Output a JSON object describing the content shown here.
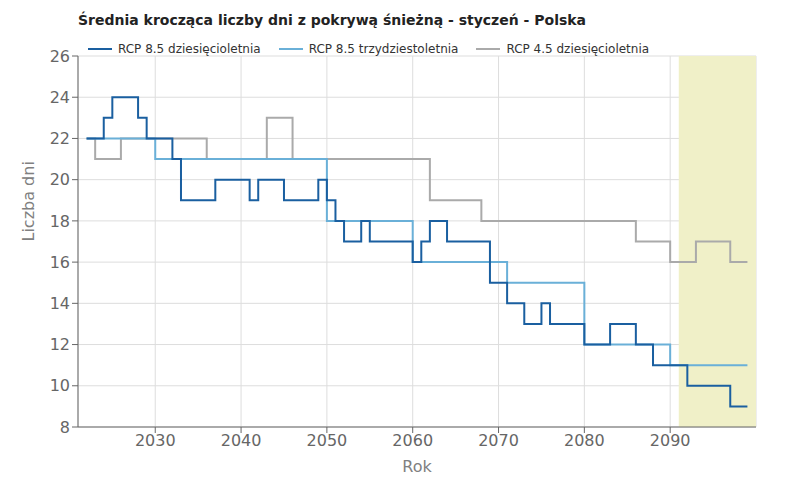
{
  "chart_data": {
    "type": "line",
    "title": "Średnia krocząca liczby dni z pokrywą śnieżną - styczeń - Polska",
    "x_label": "Rok",
    "y_label": "Liczba dni",
    "x": [
      2022,
      2023,
      2024,
      2025,
      2026,
      2027,
      2028,
      2029,
      2030,
      2031,
      2032,
      2033,
      2034,
      2035,
      2036,
      2037,
      2038,
      2039,
      2040,
      2041,
      2042,
      2043,
      2044,
      2045,
      2046,
      2047,
      2048,
      2049,
      2050,
      2051,
      2052,
      2053,
      2054,
      2055,
      2056,
      2057,
      2058,
      2059,
      2060,
      2061,
      2062,
      2063,
      2064,
      2065,
      2066,
      2067,
      2068,
      2069,
      2070,
      2071,
      2072,
      2073,
      2074,
      2075,
      2076,
      2077,
      2078,
      2079,
      2080,
      2081,
      2082,
      2083,
      2084,
      2085,
      2086,
      2087,
      2088,
      2089,
      2090,
      2091,
      2092,
      2093,
      2094,
      2095,
      2096,
      2097,
      2098,
      2099
    ],
    "series": [
      {
        "name": "RCP 8.5 dziesięcioletnia",
        "color": "#1a5fa0",
        "line_style": "step",
        "values": [
          22,
          22,
          23,
          24,
          24,
          24,
          23,
          22,
          22,
          22,
          21,
          19,
          19,
          19,
          19,
          20,
          20,
          20,
          20,
          19,
          20,
          20,
          20,
          19,
          19,
          19,
          19,
          20,
          19,
          18,
          17,
          17,
          18,
          17,
          17,
          17,
          17,
          17,
          16,
          17,
          18,
          18,
          17,
          17,
          17,
          17,
          17,
          15,
          15,
          14,
          14,
          13,
          13,
          14,
          13,
          13,
          13,
          13,
          12,
          12,
          12,
          13,
          13,
          13,
          12,
          12,
          11,
          11,
          11,
          11,
          10,
          10,
          10,
          10,
          10,
          9,
          9,
          9
        ]
      },
      {
        "name": "RCP 8.5 trzydziestoletnia",
        "color": "#6ab0d8",
        "line_style": "step",
        "values": [
          22,
          22,
          22,
          22,
          22,
          22,
          22,
          22,
          21,
          21,
          21,
          21,
          21,
          21,
          21,
          21,
          21,
          21,
          21,
          21,
          21,
          21,
          21,
          21,
          21,
          21,
          21,
          21,
          18,
          18,
          18,
          18,
          18,
          18,
          18,
          18,
          18,
          18,
          16,
          16,
          16,
          16,
          16,
          16,
          16,
          16,
          16,
          16,
          16,
          15,
          15,
          15,
          15,
          15,
          15,
          15,
          15,
          15,
          12,
          12,
          12,
          12,
          12,
          12,
          12,
          12,
          12,
          12,
          11,
          11,
          11,
          11,
          11,
          11,
          11,
          11,
          11,
          11
        ]
      },
      {
        "name": "RCP 4.5 dziesięcioletnia",
        "color": "#aaaaaa",
        "line_style": "step",
        "values": [
          22,
          21,
          21,
          21,
          22,
          22,
          22,
          22,
          22,
          22,
          22,
          22,
          22,
          22,
          21,
          21,
          21,
          21,
          21,
          21,
          21,
          23,
          23,
          23,
          21,
          21,
          21,
          21,
          21,
          21,
          21,
          21,
          21,
          21,
          21,
          21,
          21,
          21,
          21,
          21,
          19,
          19,
          19,
          19,
          19,
          19,
          18,
          18,
          18,
          18,
          18,
          18,
          18,
          18,
          18,
          18,
          18,
          18,
          18,
          18,
          18,
          18,
          18,
          18,
          17,
          17,
          17,
          17,
          16,
          16,
          16,
          17,
          17,
          17,
          17,
          16,
          16,
          16
        ]
      }
    ],
    "xlim": [
      2021,
      2100
    ],
    "xticks": [
      2030,
      2040,
      2050,
      2060,
      2070,
      2080,
      2090
    ],
    "ylim": [
      8,
      26
    ],
    "yticks": [
      8,
      10,
      12,
      14,
      16,
      18,
      20,
      22,
      24,
      26
    ],
    "grid": true,
    "legend": "top",
    "highlight_start": 2091,
    "highlight_color": "#f0f0c8"
  }
}
